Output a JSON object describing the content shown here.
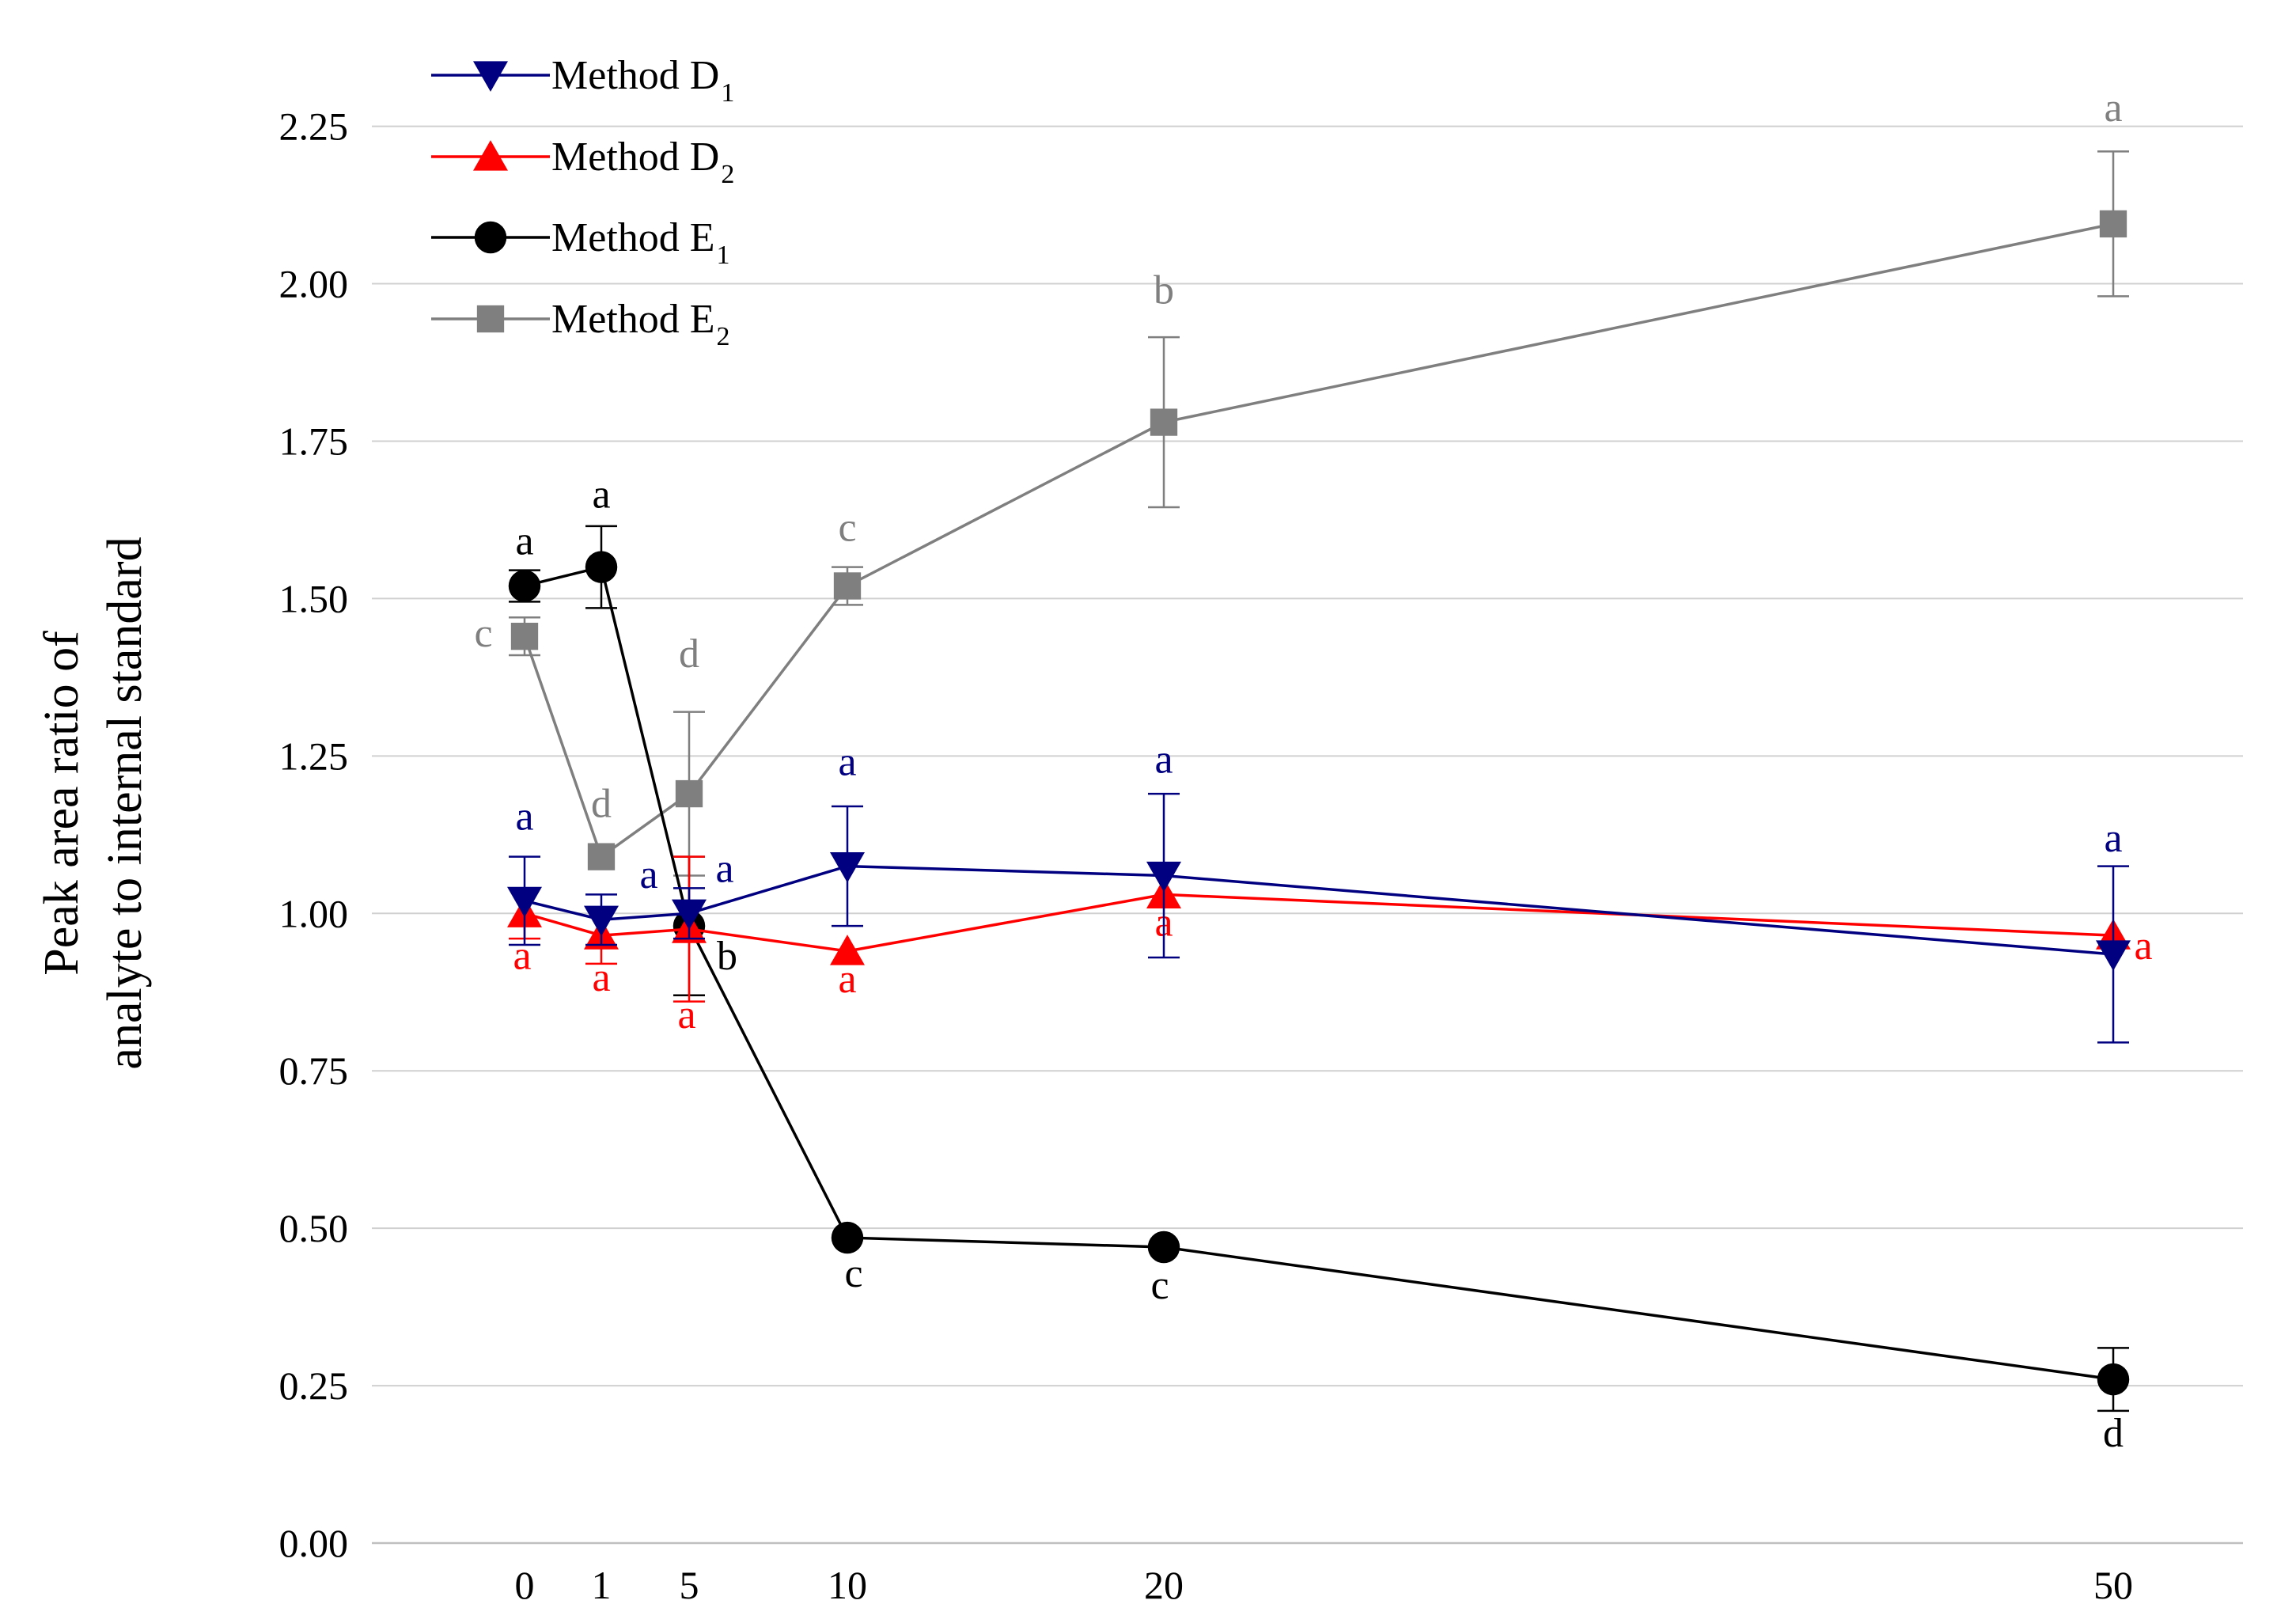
{
  "chart_data": {
    "type": "line",
    "title": "",
    "xlabel": "",
    "ylabel_lines": [
      "Peak area ratio of",
      "analyte to internal standard"
    ],
    "x": [
      0,
      1,
      5,
      10,
      20,
      50
    ],
    "x_tick_labels": [
      "0",
      "1",
      "5",
      "10",
      "20",
      "50"
    ],
    "ylim": [
      0,
      2.35
    ],
    "y_ticks": [
      0.0,
      0.25,
      0.5,
      0.75,
      1.0,
      1.25,
      1.5,
      1.75,
      2.0,
      2.25
    ],
    "y_tick_labels": [
      "0.00",
      "0.25",
      "0.50",
      "0.75",
      "1.00",
      "1.25",
      "1.50",
      "1.75",
      "2.00",
      "2.25"
    ],
    "grid": "horizontal",
    "legend_position": "top-left",
    "series": [
      {
        "name": "Method D",
        "subscript": "1",
        "color": "#000080",
        "marker": "triangle-down",
        "values": [
          1.02,
          0.99,
          1.0,
          1.075,
          1.06,
          0.935
        ],
        "errors": [
          0.07,
          0.04,
          0.04,
          0.095,
          0.13,
          0.14
        ],
        "letters": [
          "a",
          "a",
          "a",
          "a",
          "a",
          "a"
        ]
      },
      {
        "name": "Method D",
        "subscript": "2",
        "color": "#ff0000",
        "marker": "triangle-up",
        "values": [
          1.0,
          0.965,
          0.975,
          0.94,
          1.03,
          0.965
        ],
        "errors": [
          0.04,
          0.045,
          0.115,
          0.0,
          0.0,
          0.0
        ],
        "letters": [
          "a",
          "a",
          "a",
          "a",
          "a",
          "a"
        ]
      },
      {
        "name": "Method E",
        "subscript": "1",
        "color": "#000000",
        "marker": "circle",
        "values": [
          1.52,
          1.55,
          0.98,
          0.485,
          0.47,
          0.26
        ],
        "errors": [
          0.025,
          0.065,
          0.11,
          0.0,
          0.0,
          0.05
        ],
        "letters": [
          "a",
          "a",
          "b",
          "c",
          "c",
          "d"
        ]
      },
      {
        "name": "Method E",
        "subscript": "2",
        "color": "#7f7f7f",
        "marker": "square",
        "values": [
          1.44,
          1.09,
          1.19,
          1.52,
          1.78,
          2.095
        ],
        "errors": [
          0.03,
          0.0,
          0.13,
          0.03,
          0.135,
          0.115
        ],
        "letters": [
          "c",
          "d",
          "d",
          "c",
          "b",
          "a"
        ]
      }
    ]
  }
}
